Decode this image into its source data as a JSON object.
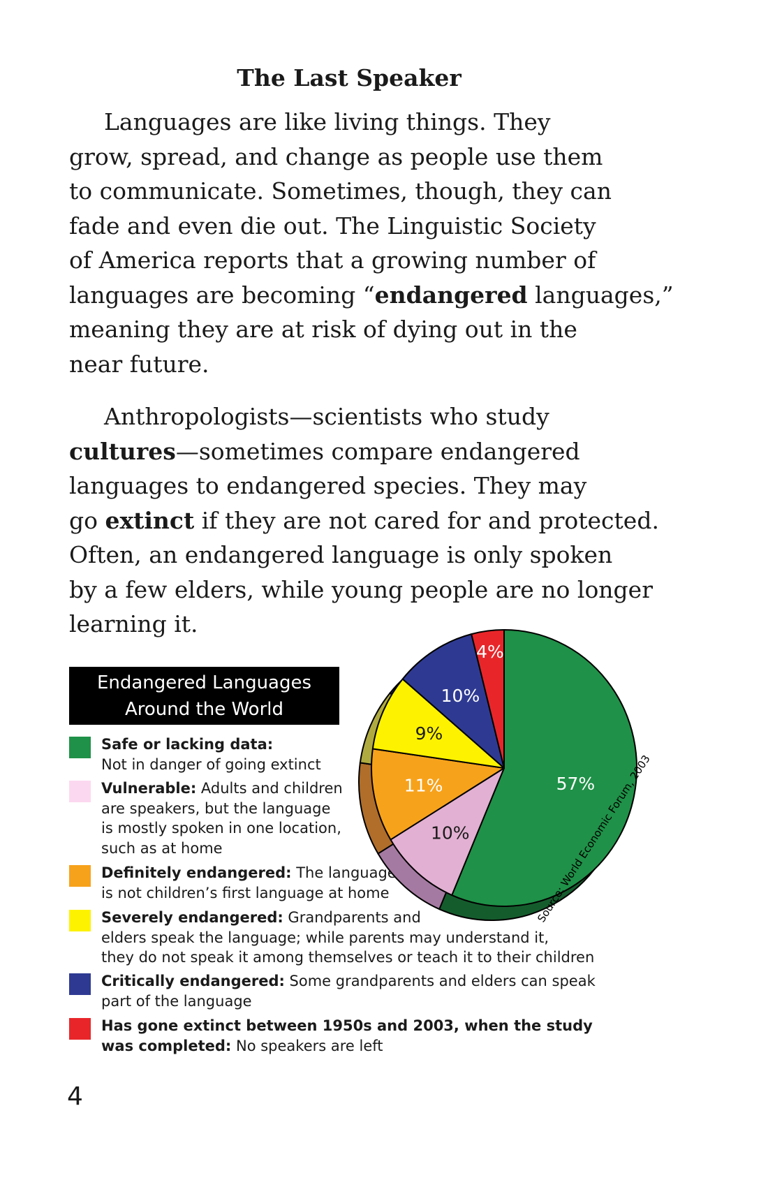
{
  "title": "The Last Speaker",
  "paragraph1": {
    "l1": "Languages are like living things. They",
    "l2": "grow, spread, and change as people use them",
    "l3": "to communicate. Sometimes, though, they can",
    "l4": "fade and even die out. The Linguistic Society",
    "l5": "of America reports that a growing number of",
    "l6_pre": "languages are becoming “",
    "l6_bold": "endangered",
    "l6_post": " languages,”",
    "l7": "meaning they are at risk of dying out in the",
    "l8": "near future."
  },
  "paragraph2": {
    "l1": "Anthropologists—scientists who study",
    "l2_bold": "cultures",
    "l2_post": "—sometimes compare endangered",
    "l3": "languages to endangered species. They may",
    "l4_pre": "go ",
    "l4_bold": "extinct",
    "l4_post": " if they are not cared for and protected.",
    "l5": "Often, an endangered language is only spoken",
    "l6": "by a few elders, while young people are no longer",
    "l7": "learning it."
  },
  "legend": {
    "title_line1": "Endangered Languages",
    "title_line2": "Around the World",
    "items": [
      {
        "color": "#1f9148",
        "bold": "Safe or lacking data:",
        "lines": [
          "",
          "Not in danger of going extinct"
        ]
      },
      {
        "color": "#fcd8f0",
        "bold": "Vulnerable:",
        "lines": [
          " Adults and children",
          "are speakers, but the language",
          "is mostly spoken in one location,",
          "such as at home"
        ]
      },
      {
        "color": "#f7a21b",
        "bold": "Definitely endangered:",
        "lines": [
          " The language",
          "is not children’s first language at home"
        ]
      },
      {
        "color": "#fdf200",
        "bold": "Severely endangered:",
        "lines": [
          " Grandparents and",
          "elders speak the language; while parents may understand it,",
          "they do not speak it among themselves or teach it to their children"
        ]
      },
      {
        "color": "#2e3a92",
        "bold": "Critically endangered:",
        "lines": [
          " Some grandparents and elders can speak",
          "part of the language"
        ]
      },
      {
        "color": "#e8262a",
        "bold": "Has gone extinct between 1950s and 2003, when the study",
        "bold2": "was completed:",
        "lines": [
          " No speakers are left"
        ]
      }
    ]
  },
  "chart_data": {
    "type": "pie",
    "slices": [
      {
        "label": "57%",
        "value": 57,
        "color": "#1f9148",
        "side": "#155c2d"
      },
      {
        "label": "10%",
        "value": 10,
        "color": "#e2b0d2",
        "side": "#a57aa2"
      },
      {
        "label": "11%",
        "value": 11,
        "color": "#f7a21b",
        "side": "#b06e2a"
      },
      {
        "label": "9%",
        "value": 9,
        "color": "#fdf200",
        "side": "#b0ab40"
      },
      {
        "label": "10%",
        "value": 10,
        "color": "#2e3a92",
        "side": "#20286a"
      },
      {
        "label": "4%",
        "value": 4,
        "color": "#e8262a",
        "side": "#a01a1d"
      }
    ],
    "source": "Source: World Economic Forum, 2003"
  },
  "page_number": "4"
}
